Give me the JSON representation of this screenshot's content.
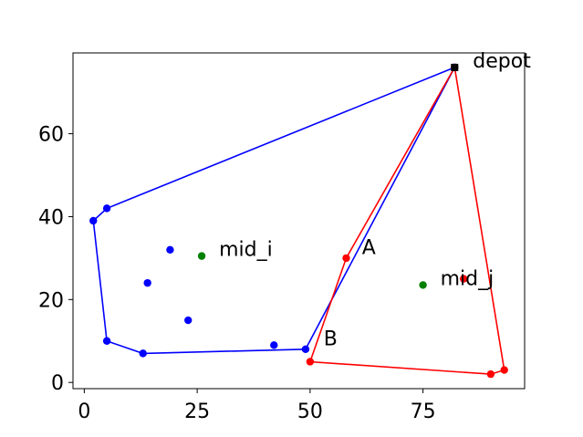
{
  "chart_data": {
    "type": "scatter",
    "xlim": [
      -2.5,
      97.5
    ],
    "ylim": [
      -1.5,
      79.5
    ],
    "x_ticks": [
      0,
      25,
      50,
      75
    ],
    "y_ticks": [
      0,
      20,
      40,
      60
    ],
    "grid": false,
    "legend": "none",
    "series": [
      {
        "color": "#0000ff",
        "points": [
          [
            82,
            76
          ],
          [
            5,
            42
          ],
          [
            2,
            39
          ],
          [
            5,
            10
          ],
          [
            13,
            7
          ],
          [
            42,
            9
          ],
          [
            49,
            8
          ],
          [
            82,
            76
          ],
          [
            19,
            32
          ],
          [
            14,
            24
          ],
          [
            23,
            15
          ]
        ],
        "route": [
          [
            82,
            76
          ],
          [
            5,
            42
          ],
          [
            2,
            39
          ],
          [
            5,
            10
          ],
          [
            13,
            7
          ],
          [
            49,
            8
          ],
          [
            82,
            76
          ]
        ]
      },
      {
        "color": "#ff0000",
        "points": [
          [
            82,
            76
          ],
          [
            58,
            30
          ],
          [
            50,
            5
          ],
          [
            90,
            2
          ],
          [
            93,
            3
          ],
          [
            84,
            25
          ]
        ],
        "route": [
          [
            82,
            76
          ],
          [
            58,
            30
          ],
          [
            50,
            5
          ],
          [
            90,
            2
          ],
          [
            93,
            3
          ],
          [
            82,
            76
          ]
        ]
      }
    ],
    "depot": {
      "x": 82,
      "y": 76,
      "color": "#000000",
      "label": "depot"
    },
    "midpoints": [
      {
        "x": 26,
        "y": 30.5,
        "color": "#008000",
        "label": "mid_i"
      },
      {
        "x": 75,
        "y": 23.5,
        "color": "#008000",
        "label": "mid_j"
      }
    ],
    "annotations": [
      {
        "text": "A",
        "x": 61.5,
        "y": 31
      },
      {
        "text": "B",
        "x": 53,
        "y": 9
      }
    ]
  }
}
